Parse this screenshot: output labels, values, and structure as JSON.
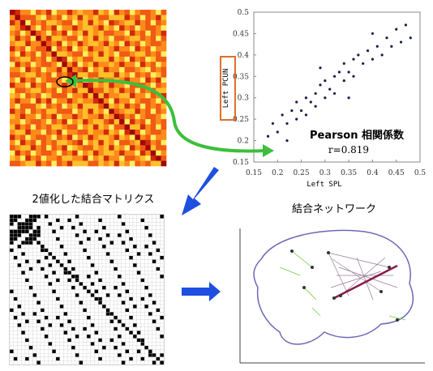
{
  "scatter": {
    "type": "scatter",
    "xlabel": "Left SPL",
    "ylabel": "Left PCUN",
    "annotation": "Pearson 相関係数",
    "r_label": "r=0.819",
    "xlim": [
      0.15,
      0.5
    ],
    "ylim": [
      0.15,
      0.5
    ],
    "xticks": [
      0.15,
      0.2,
      0.25,
      0.3,
      0.35,
      0.4,
      0.45,
      0.5
    ],
    "yticks": [
      0.15,
      0.2,
      0.25,
      0.3,
      0.35,
      0.4,
      0.45,
      0.5
    ],
    "color": "#1a1f4a",
    "x": [
      0.2,
      0.21,
      0.22,
      0.23,
      0.24,
      0.24,
      0.25,
      0.26,
      0.26,
      0.27,
      0.28,
      0.28,
      0.29,
      0.3,
      0.3,
      0.31,
      0.32,
      0.32,
      0.33,
      0.34,
      0.34,
      0.35,
      0.36,
      0.36,
      0.37,
      0.38,
      0.39,
      0.4,
      0.41,
      0.42,
      0.43,
      0.44,
      0.45,
      0.46,
      0.47,
      0.18,
      0.19,
      0.22,
      0.35,
      0.29,
      0.4,
      0.48
    ],
    "y": [
      0.22,
      0.26,
      0.24,
      0.27,
      0.25,
      0.29,
      0.27,
      0.3,
      0.26,
      0.29,
      0.31,
      0.28,
      0.33,
      0.3,
      0.34,
      0.32,
      0.35,
      0.31,
      0.36,
      0.34,
      0.38,
      0.36,
      0.39,
      0.35,
      0.4,
      0.38,
      0.41,
      0.39,
      0.42,
      0.4,
      0.44,
      0.42,
      0.46,
      0.43,
      0.47,
      0.21,
      0.24,
      0.2,
      0.3,
      0.37,
      0.45,
      0.44
    ]
  },
  "labels": {
    "binary_matrix": "2値化した結合マトリクス",
    "network": "結合ネットワーク"
  }
}
